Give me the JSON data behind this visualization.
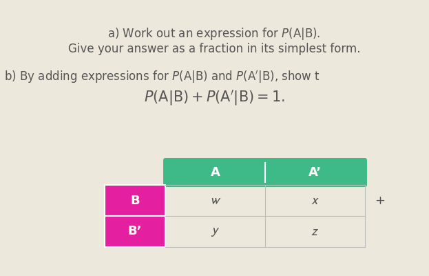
{
  "background_color": "#ede8dc",
  "text_color": "#555555",
  "green_color": "#3dba87",
  "magenta_color": "#e520a0",
  "header_A": "A",
  "header_Aprime": "A’",
  "row_B": "B",
  "row_Bprime": "B’",
  "cell_w": "$\\mathit{w}$",
  "cell_x": "$\\mathit{x}$",
  "cell_y": "$\\mathit{y}$",
  "cell_z": "$\\mathit{z}$",
  "plus_sign": "+",
  "line1_plain": "a) Work out an expression for ",
  "line1_math": "$P(\\mathrm{A}|\\mathrm{B})$.",
  "line2": "Give your answer as a fraction in its simplest form.",
  "line3_plain": "b) By adding expressions for ",
  "line3_math1": "$P(\\mathrm{A}|\\mathrm{B})$",
  "line3_and": " and ",
  "line3_math2": "$P(\\mathrm{A^{\\prime}}|\\mathrm{B})$",
  "line3_end": ", show t",
  "line4": "$P(\\mathrm{A}|\\mathrm{B}) + P(\\mathrm{A^{\\prime}}|\\mathrm{B}) = 1.$"
}
